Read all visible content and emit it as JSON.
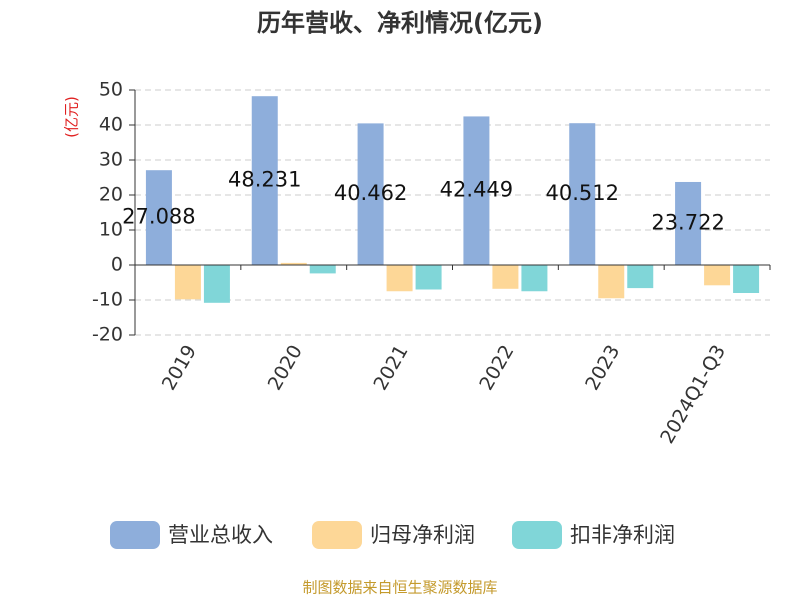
{
  "chart_data": {
    "type": "bar",
    "title": "历年营收、净利情况(亿元)",
    "y_label": "(亿元)",
    "source": "制图数据来自恒生聚源数据库",
    "categories": [
      "2019",
      "2020",
      "2021",
      "2022",
      "2023",
      "2024Q1-Q3"
    ],
    "series": [
      {
        "name": "营业总收入",
        "color": "#8eaedb",
        "values": [
          27.088,
          48.231,
          40.462,
          42.449,
          40.512,
          23.722
        ],
        "data_labels": true
      },
      {
        "name": "归母净利润",
        "color": "#fdd797",
        "values": [
          -9.8,
          0.6,
          -7.5,
          -6.8,
          -9.5,
          -5.8
        ]
      },
      {
        "name": "扣非净利润",
        "color": "#80d6d8",
        "values": [
          -10.8,
          -2.4,
          -7.0,
          -7.5,
          -6.6,
          -8.0
        ]
      }
    ],
    "ylim": [
      -20,
      50
    ],
    "yticks": [
      -20,
      -10,
      0,
      10,
      20,
      30,
      40,
      50
    ],
    "grid": true,
    "legend": "bottom"
  }
}
